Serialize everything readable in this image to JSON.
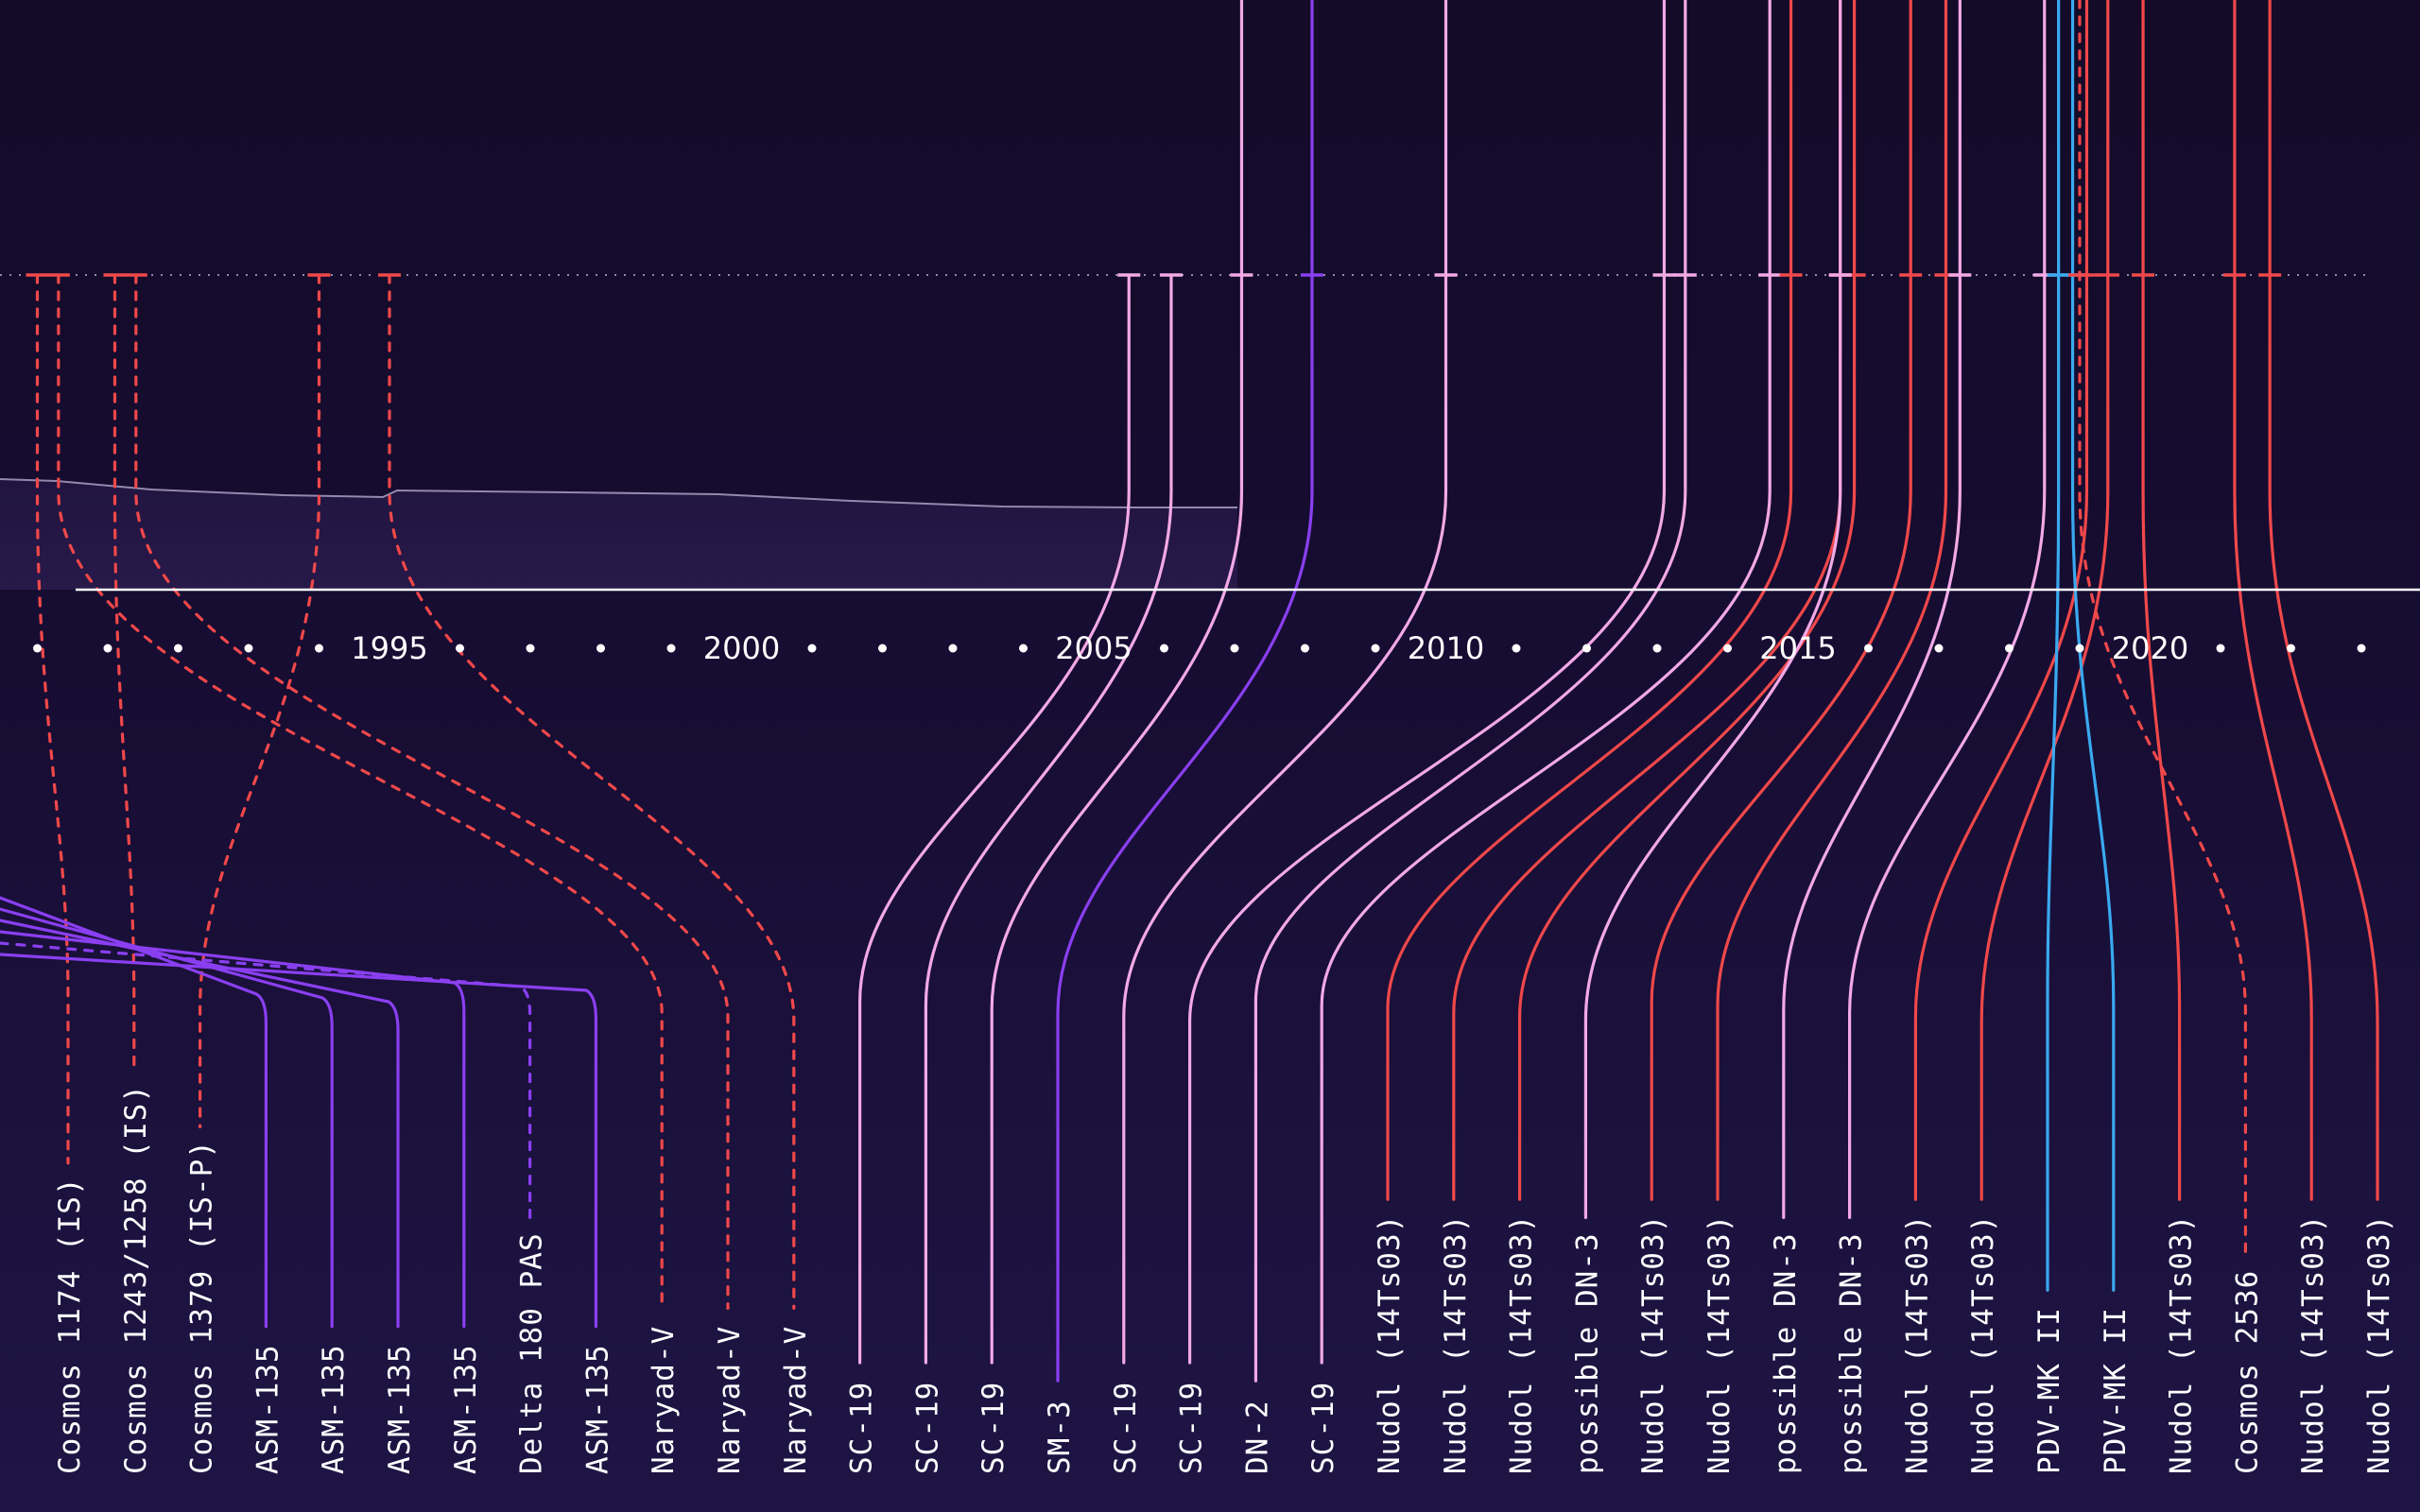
{
  "colors": {
    "background_top": "#130b27",
    "background_bottom": "#1e1545",
    "sc19_lineage": "#f2a9e6",
    "asm_sm3": "#8a3ff0",
    "nudol_cosmos": "#f0484a",
    "pdv": "#3aa9f0",
    "axis": "#ffffff",
    "orbit_reference": "#9488ad"
  },
  "chart_data": {
    "type": "timeline",
    "x_axis": {
      "tick_labels": [
        "1995",
        "2000",
        "2005",
        "2010",
        "2015",
        "2020"
      ],
      "range": [
        1990,
        2024
      ],
      "minor_tick_interval_years": 1
    },
    "tests": [
      {
        "label": "Cosmos 1174 (IS)",
        "category": "nudol_cosmos",
        "dashed": true,
        "year": 1990.0
      },
      {
        "label": "Cosmos 1243/1258 (IS)",
        "category": "nudol_cosmos",
        "dashed": true,
        "year": 1991.1
      },
      {
        "label": "Cosmos 1379 (IS-P)",
        "category": "nudol_cosmos",
        "dashed": true,
        "year": 1994.0
      },
      {
        "label": "ASM-135",
        "category": "asm_sm3",
        "dashed": false,
        "year": 1989.4
      },
      {
        "label": "ASM-135",
        "category": "asm_sm3",
        "dashed": false,
        "year": 1989.5
      },
      {
        "label": "ASM-135",
        "category": "asm_sm3",
        "dashed": false,
        "year": 1989.6
      },
      {
        "label": "ASM-135",
        "category": "asm_sm3",
        "dashed": false,
        "year": 1989.7
      },
      {
        "label": "Delta 180 PAS",
        "category": "asm_sm3",
        "dashed": true,
        "year": 1989.8
      },
      {
        "label": "ASM-135",
        "category": "asm_sm3",
        "dashed": false,
        "year": 1989.9
      },
      {
        "label": "Naryad-V",
        "category": "nudol_cosmos",
        "dashed": true,
        "year": 1990.3
      },
      {
        "label": "Naryad-V",
        "category": "nudol_cosmos",
        "dashed": true,
        "year": 1991.4
      },
      {
        "label": "Naryad-V",
        "category": "nudol_cosmos",
        "dashed": true,
        "year": 1995.0
      },
      {
        "label": "SC-19",
        "category": "sc19_lineage",
        "dashed": false,
        "year": 2005.5
      },
      {
        "label": "SC-19",
        "category": "sc19_lineage",
        "dashed": false,
        "year": 2006.1
      },
      {
        "label": "SC-19",
        "category": "sc19_lineage",
        "dashed": false,
        "year": 2007.1
      },
      {
        "label": "SM-3",
        "category": "asm_sm3",
        "dashed": false,
        "year": 2008.1
      },
      {
        "label": "SC-19",
        "category": "sc19_lineage",
        "dashed": false,
        "year": 2010.0
      },
      {
        "label": "SC-19",
        "category": "sc19_lineage",
        "dashed": false,
        "year": 2013.1
      },
      {
        "label": "DN-2",
        "category": "sc19_lineage",
        "dashed": false,
        "year": 2013.4
      },
      {
        "label": "SC-19",
        "category": "sc19_lineage",
        "dashed": false,
        "year": 2014.6
      },
      {
        "label": "Nudol (14Ts03)",
        "category": "nudol_cosmos",
        "dashed": false,
        "year": 2014.9
      },
      {
        "label": "Nudol (14Ts03)",
        "category": "nudol_cosmos",
        "dashed": false,
        "year": 2015.6
      },
      {
        "label": "Nudol (14Ts03)",
        "category": "nudol_cosmos",
        "dashed": false,
        "year": 2015.8
      },
      {
        "label": "possible DN-3",
        "category": "sc19_lineage",
        "dashed": false,
        "year": 2015.6
      },
      {
        "label": "Nudol (14Ts03)",
        "category": "nudol_cosmos",
        "dashed": false,
        "year": 2016.6
      },
      {
        "label": "Nudol (14Ts03)",
        "category": "nudol_cosmos",
        "dashed": false,
        "year": 2017.1
      },
      {
        "label": "possible DN-3",
        "category": "sc19_lineage",
        "dashed": false,
        "year": 2017.3
      },
      {
        "label": "possible DN-3",
        "category": "sc19_lineage",
        "dashed": false,
        "year": 2018.5
      },
      {
        "label": "Nudol (14Ts03)",
        "category": "nudol_cosmos",
        "dashed": false,
        "year": 2019.1
      },
      {
        "label": "Nudol (14Ts03)",
        "category": "nudol_cosmos",
        "dashed": false,
        "year": 2019.4
      },
      {
        "label": "PDV-MK II",
        "category": "pdv",
        "dashed": false,
        "year": 2018.7
      },
      {
        "label": "PDV-MK II",
        "category": "pdv",
        "dashed": false,
        "year": 2018.9
      },
      {
        "label": "Nudol (14Ts03)",
        "category": "nudol_cosmos",
        "dashed": false,
        "year": 2019.9
      },
      {
        "label": "Cosmos 2536",
        "category": "nudol_cosmos",
        "dashed": true,
        "year": 2019.0
      },
      {
        "label": "Nudol (14Ts03)",
        "category": "nudol_cosmos",
        "dashed": false,
        "year": 2021.2
      },
      {
        "label": "Nudol (14Ts03)",
        "category": "nudol_cosmos",
        "dashed": false,
        "year": 2021.7
      }
    ]
  }
}
